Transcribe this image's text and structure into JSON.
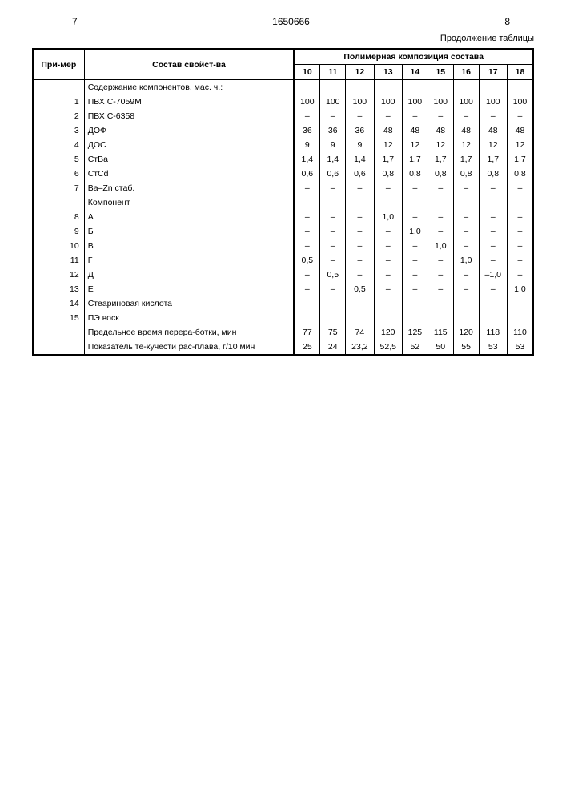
{
  "header": {
    "left_page": "7",
    "doc_number": "1650666",
    "right_page": "8",
    "continuation": "Продолжение таблицы"
  },
  "table": {
    "col_primer": "При-мер",
    "col_svoistva": "Состав свойст-ва",
    "col_group_title": "Полимерная композиция состава",
    "columns": [
      "10",
      "11",
      "12",
      "13",
      "14",
      "15",
      "16",
      "17",
      "18"
    ],
    "group_labels": {
      "content": "Содержание компонентов, мас. ч.:",
      "component": "Компонент",
      "stearic": "Стеариновая кислота",
      "pe_wax": "ПЭ воск",
      "limit_time": "Предельное время перера-ботки, мин",
      "flow_index": "Показатель те-кучести рас-плава, г/10 мин"
    },
    "rows": [
      {
        "n": "1",
        "label": "ПВХ С-7059М",
        "v": [
          "100",
          "100",
          "100",
          "100",
          "100",
          "100",
          "100",
          "100",
          "100"
        ]
      },
      {
        "n": "2",
        "label": "ПВХ С-6358",
        "v": [
          "–",
          "–",
          "–",
          "–",
          "–",
          "–",
          "–",
          "–",
          "–"
        ]
      },
      {
        "n": "3",
        "label": "ДОФ",
        "v": [
          "36",
          "36",
          "36",
          "48",
          "48",
          "48",
          "48",
          "48",
          "48"
        ]
      },
      {
        "n": "4",
        "label": "ДОС",
        "v": [
          "9",
          "9",
          "9",
          "12",
          "12",
          "12",
          "12",
          "12",
          "12"
        ]
      },
      {
        "n": "5",
        "label": "СтВа",
        "v": [
          "1,4",
          "1,4",
          "1,4",
          "1,7",
          "1,7",
          "1,7",
          "1,7",
          "1,7",
          "1,7"
        ]
      },
      {
        "n": "6",
        "label": "СтCd",
        "v": [
          "0,6",
          "0,6",
          "0,6",
          "0,8",
          "0,8",
          "0,8",
          "0,8",
          "0,8",
          "0,8"
        ]
      },
      {
        "n": "7",
        "label": "Ва–Zn стаб.",
        "v": [
          "–",
          "–",
          "–",
          "–",
          "–",
          "–",
          "–",
          "–",
          "–"
        ]
      },
      {
        "n": "8",
        "label": "А",
        "v": [
          "–",
          "–",
          "–",
          "1,0",
          "–",
          "–",
          "–",
          "–",
          "–"
        ]
      },
      {
        "n": "9",
        "label": "Б",
        "v": [
          "–",
          "–",
          "–",
          "–",
          "1,0",
          "–",
          "–",
          "–",
          "–"
        ]
      },
      {
        "n": "10",
        "label": "В",
        "v": [
          "–",
          "–",
          "–",
          "–",
          "–",
          "1,0",
          "–",
          "–",
          "–"
        ]
      },
      {
        "n": "11",
        "label": "Г",
        "v": [
          "0,5",
          "–",
          "–",
          "–",
          "–",
          "–",
          "1,0",
          "–",
          "–"
        ]
      },
      {
        "n": "12",
        "label": "Д",
        "v": [
          "–",
          "0,5",
          "–",
          "–",
          "–",
          "–",
          "–",
          "–1,0",
          "–"
        ]
      },
      {
        "n": "13",
        "label": "Е",
        "v": [
          "–",
          "–",
          "0,5",
          "–",
          "–",
          "–",
          "–",
          "–",
          "1,0"
        ]
      },
      {
        "n": "14",
        "label": "",
        "v": [
          "",
          "",
          "",
          "",
          "",
          "",
          "",
          "",
          ""
        ]
      },
      {
        "n": "15",
        "label": "",
        "v": [
          "",
          "",
          "",
          "",
          "",
          "",
          "",
          "",
          ""
        ]
      }
    ],
    "limit_time_values": [
      "77",
      "75",
      "74",
      "120",
      "125",
      "115",
      "120",
      "118",
      "110"
    ],
    "flow_index_values": [
      "25",
      "24",
      "23,2",
      "52,5",
      "52",
      "50",
      "55",
      "53",
      "53"
    ]
  }
}
